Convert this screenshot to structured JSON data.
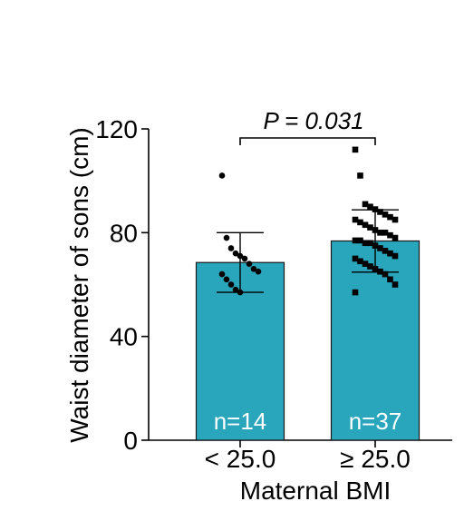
{
  "chart_data": {
    "type": "bar",
    "ylabel": "Waist diameter of sons (cm)",
    "xlabel": "Maternal BMI",
    "ylim": [
      0,
      120
    ],
    "yticks": [
      0,
      40,
      80,
      120
    ],
    "categories": [
      "< 25.0",
      "≥ 25.0"
    ],
    "values": [
      68.5,
      76.8
    ],
    "sd": [
      11.5,
      12.0
    ],
    "n_labels": [
      "n=14",
      "n=37"
    ],
    "annotation": "P = 0.031",
    "bar_color": "#2AA6BC",
    "points": [
      [
        102,
        78,
        74,
        72,
        71,
        70,
        68,
        66,
        65,
        64,
        62,
        60,
        58,
        57
      ],
      [
        112,
        102,
        91,
        90,
        89,
        88,
        87,
        86,
        85,
        85,
        84,
        83,
        82,
        81,
        80,
        80,
        79,
        78,
        77,
        77,
        76,
        76,
        75,
        74,
        73,
        72,
        71,
        70,
        69,
        68,
        67,
        66,
        65,
        64,
        62,
        60,
        57
      ]
    ]
  }
}
